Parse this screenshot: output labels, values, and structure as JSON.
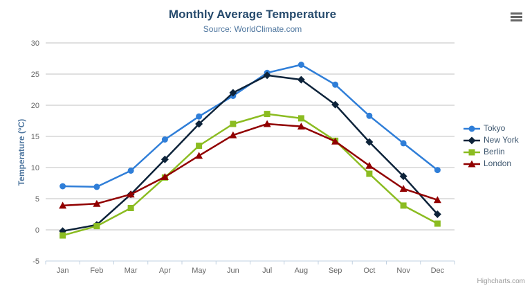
{
  "chart_data": {
    "type": "line",
    "title": "Monthly Average Temperature",
    "subtitle": "Source: WorldClimate.com",
    "xlabel": "",
    "ylabel": "Temperature (°C)",
    "ylim": [
      -5,
      30
    ],
    "y_tick_interval": 5,
    "grid": true,
    "legend_position": "right",
    "categories": [
      "Jan",
      "Feb",
      "Mar",
      "Apr",
      "May",
      "Jun",
      "Jul",
      "Aug",
      "Sep",
      "Oct",
      "Nov",
      "Dec"
    ],
    "series": [
      {
        "name": "Tokyo",
        "color": "#2f7ed8",
        "marker": "circle",
        "values": [
          7.0,
          6.9,
          9.5,
          14.5,
          18.2,
          21.5,
          25.2,
          26.5,
          23.3,
          18.3,
          13.9,
          9.6
        ]
      },
      {
        "name": "New York",
        "color": "#0d233a",
        "marker": "diamond",
        "values": [
          -0.2,
          0.8,
          5.7,
          11.3,
          17.0,
          22.0,
          24.8,
          24.1,
          20.1,
          14.1,
          8.6,
          2.5
        ]
      },
      {
        "name": "Berlin",
        "color": "#8bbc21",
        "marker": "square",
        "values": [
          -0.9,
          0.6,
          3.5,
          8.4,
          13.5,
          17.0,
          18.6,
          17.9,
          14.3,
          9.0,
          3.9,
          1.0
        ]
      },
      {
        "name": "London",
        "color": "#910000",
        "marker": "triangle",
        "values": [
          3.9,
          4.2,
          5.7,
          8.5,
          11.9,
          15.2,
          17.0,
          16.6,
          14.2,
          10.3,
          6.6,
          4.8
        ]
      }
    ]
  },
  "colors": {
    "gridline": "#c0c0c0",
    "axis_line": "#c0d0e0",
    "tick_label": "#666666",
    "title": "#274b6d",
    "subtitle": "#4d759e",
    "legend_text": "#3e576f",
    "credits": "#999999"
  },
  "menu": {
    "icon": "hamburger-icon"
  },
  "credits_label": "Highcharts.com"
}
